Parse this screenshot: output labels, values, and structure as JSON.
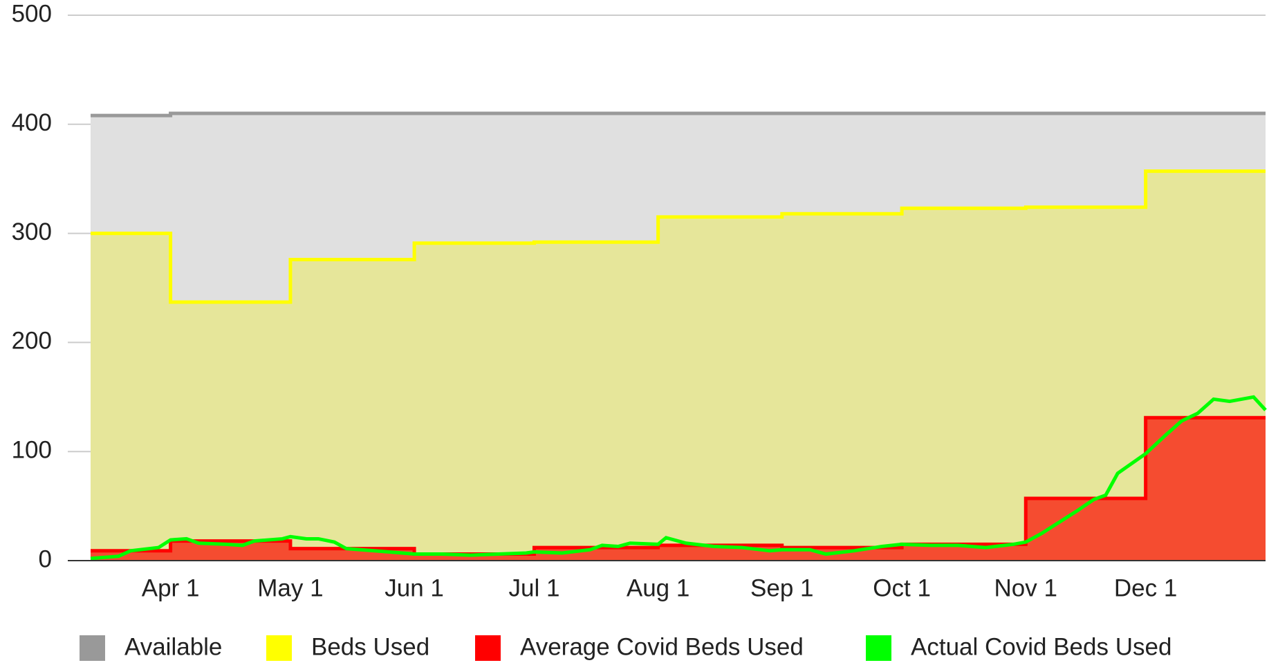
{
  "chart_data": {
    "type": "line",
    "xlim": [
      "Mar 12",
      "Dec 31"
    ],
    "xticks": [
      "Apr 1",
      "May 1",
      "Jun 1",
      "Jul 1",
      "Aug 1",
      "Sep 1",
      "Oct 1",
      "Nov 1",
      "Dec 1"
    ],
    "ylim": [
      0,
      500
    ],
    "yticks": [
      0,
      100,
      200,
      300,
      400,
      500
    ],
    "grid": true,
    "legend": "bottom",
    "series": [
      {
        "name": "Available",
        "color": "#999999",
        "fill": "#e0e0e0",
        "step": true,
        "x": [
          "Mar 12",
          "Apr 1",
          "Dec 31"
        ],
        "values": [
          408,
          410,
          410
        ]
      },
      {
        "name": "Beds Used",
        "color": "#ffff00",
        "fill": "#e6e69a",
        "step": true,
        "x": [
          "Mar 12",
          "Apr 1",
          "May 1",
          "Jun 1",
          "Jul 1",
          "Aug 1",
          "Sep 1",
          "Oct 1",
          "Nov 1",
          "Dec 1",
          "Dec 31"
        ],
        "values": [
          300,
          237,
          276,
          291,
          292,
          315,
          318,
          323,
          324,
          357,
          357
        ]
      },
      {
        "name": "Average Covid Beds Used",
        "color": "#ff0000",
        "fill": "#f54c30",
        "step": true,
        "x": [
          "Mar 12",
          "Apr 1",
          "May 1",
          "Jun 1",
          "Jul 1",
          "Aug 1",
          "Sep 1",
          "Oct 1",
          "Nov 1",
          "Dec 1",
          "Dec 31"
        ],
        "values": [
          9,
          18,
          11,
          6,
          12,
          14,
          12,
          15,
          57,
          131,
          131
        ]
      },
      {
        "name": "Actual Covid Beds Used",
        "color": "#00ff00",
        "step": false,
        "x": [
          "Mar 12",
          "Mar 19",
          "Mar 22",
          "Mar 29",
          "Apr 1",
          "Apr 5",
          "Apr 8",
          "Apr 15",
          "Apr 19",
          "Apr 22",
          "Apr 29",
          "May 1",
          "May 5",
          "May 8",
          "May 12",
          "May 15",
          "May 22",
          "May 29",
          "Jun 1",
          "Jun 8",
          "Jun 15",
          "Jun 22",
          "Jun 29",
          "Jul 1",
          "Jul 8",
          "Jul 15",
          "Jul 18",
          "Jul 22",
          "Jul 25",
          "Aug 1",
          "Aug 3",
          "Aug 8",
          "Aug 15",
          "Aug 22",
          "Aug 29",
          "Sep 1",
          "Sep 8",
          "Sep 12",
          "Sep 19",
          "Sep 26",
          "Oct 1",
          "Oct 8",
          "Oct 15",
          "Oct 22",
          "Oct 29",
          "Nov 1",
          "Nov 5",
          "Nov 8",
          "Nov 14",
          "Nov 18",
          "Nov 21",
          "Nov 24",
          "Dec 1",
          "Dec 6",
          "Dec 10",
          "Dec 14",
          "Dec 18",
          "Dec 22",
          "Dec 28",
          "Dec 31"
        ],
        "values": [
          2,
          4,
          9,
          12,
          19,
          20,
          16,
          15,
          14,
          18,
          20,
          22,
          20,
          20,
          17,
          11,
          9,
          7,
          6,
          6,
          5,
          6,
          7,
          8,
          7,
          10,
          14,
          13,
          16,
          15,
          21,
          16,
          13,
          12,
          9,
          10,
          10,
          6,
          9,
          13,
          15,
          14,
          14,
          12,
          15,
          17,
          25,
          32,
          46,
          56,
          60,
          80,
          98,
          115,
          128,
          135,
          148,
          146,
          150,
          138
        ]
      }
    ]
  }
}
